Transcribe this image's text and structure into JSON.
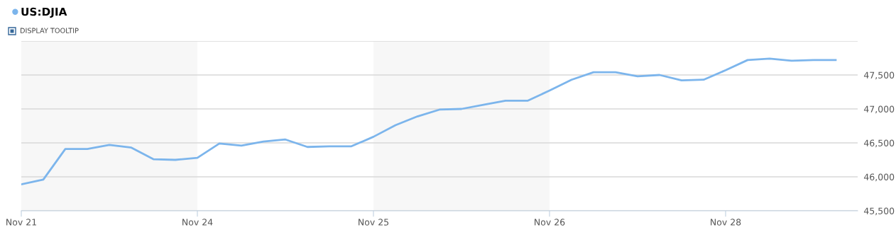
{
  "chart_data": {
    "type": "line",
    "categories": [
      "Nov 21",
      null,
      null,
      null,
      null,
      null,
      null,
      null,
      "Nov 24",
      null,
      null,
      null,
      null,
      null,
      null,
      null,
      "Nov 25",
      null,
      null,
      null,
      null,
      null,
      null,
      null,
      "Nov 26",
      null,
      null,
      null,
      null,
      null,
      null,
      null,
      "Nov 28",
      null,
      null,
      null,
      null,
      null
    ],
    "series": [
      {
        "name": "US:DJIA",
        "color": "#7cb5ec",
        "values": [
          45890,
          45960,
          46410,
          46410,
          46470,
          46430,
          46260,
          46250,
          46280,
          46490,
          46460,
          46520,
          46550,
          46440,
          46450,
          46450,
          46590,
          46760,
          46890,
          46990,
          47000,
          47060,
          47120,
          47120,
          47270,
          47430,
          47540,
          47540,
          47480,
          47500,
          47420,
          47430,
          47570,
          47720,
          47740,
          47710,
          47720,
          47720
        ]
      }
    ],
    "ylim": [
      45500,
      48000
    ],
    "yticks": [
      {
        "value": 45500,
        "label": "45,500"
      },
      {
        "value": 46000,
        "label": "46,000"
      },
      {
        "value": 46500,
        "label": "46,500"
      },
      {
        "value": 47000,
        "label": "47,000"
      },
      {
        "value": 47500,
        "label": "47,500"
      },
      {
        "value": 48000,
        "label": null
      }
    ],
    "bands": [
      {
        "axis": "x",
        "from": "Nov 21",
        "to": "Nov 24",
        "color": "#f7f7f7"
      },
      {
        "axis": "x",
        "from": "Nov 25",
        "to": "Nov 26",
        "color": "#f7f7f7"
      }
    ],
    "grid": "y",
    "legend": "top left",
    "marker": "none",
    "annotations": [
      "DISPLAY TOOLTIP"
    ]
  }
}
